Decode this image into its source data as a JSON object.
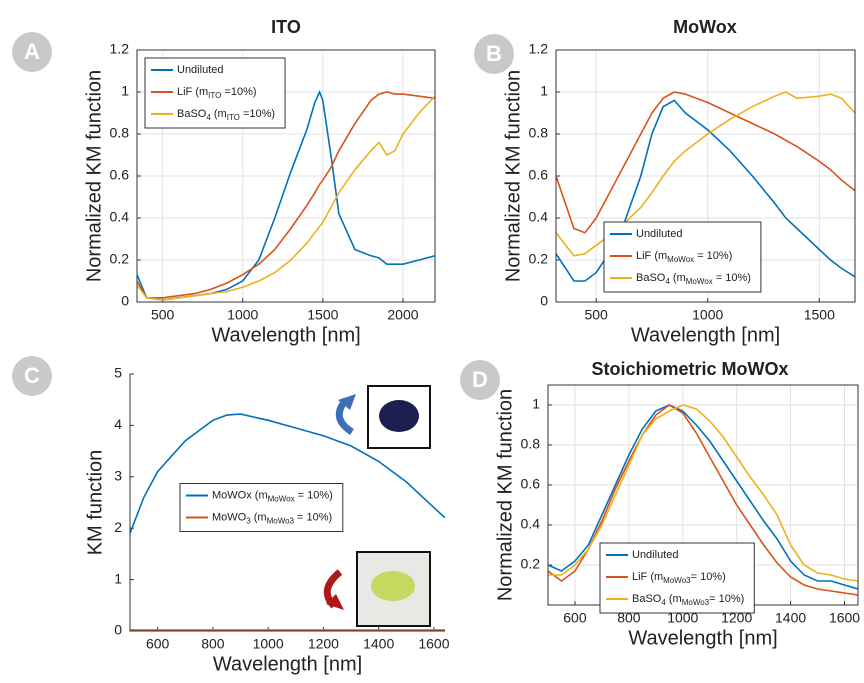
{
  "chart_data": [
    {
      "type": "line",
      "panel_label": "A",
      "title": "ITO",
      "xlabel": "Wavelength [nm]",
      "ylabel": "Normalized KM function",
      "xlim": [
        340,
        2200
      ],
      "ylim": [
        0,
        1.2
      ],
      "xticks": [
        500,
        1000,
        1500,
        2000
      ],
      "yticks": [
        0,
        0.2,
        0.4,
        0.6,
        0.8,
        1,
        1.2
      ],
      "grid": true,
      "box": true,
      "legend": "upper left",
      "x": [
        340,
        400,
        500,
        600,
        700,
        800,
        900,
        1000,
        1100,
        1200,
        1300,
        1400,
        1450,
        1480,
        1500,
        1550,
        1600,
        1700,
        1800,
        1850,
        1900,
        1950,
        2000,
        2100,
        2200
      ],
      "series": [
        {
          "name": [
            "Undiluted"
          ],
          "color": "#0072bd",
          "values": [
            0.13,
            0.02,
            0.01,
            0.02,
            0.03,
            0.04,
            0.06,
            0.1,
            0.2,
            0.4,
            0.62,
            0.82,
            0.95,
            1.0,
            0.96,
            0.7,
            0.42,
            0.25,
            0.22,
            0.21,
            0.18,
            0.18,
            0.18,
            0.2,
            0.22
          ]
        },
        {
          "name": [
            "LiF (m",
            "ITO",
            " =10%)"
          ],
          "color": "#d95319",
          "values": [
            0.1,
            0.02,
            0.02,
            0.03,
            0.04,
            0.06,
            0.09,
            0.13,
            0.18,
            0.25,
            0.35,
            0.46,
            0.52,
            0.56,
            0.58,
            0.64,
            0.72,
            0.85,
            0.96,
            0.99,
            1.0,
            0.99,
            0.99,
            0.98,
            0.97
          ]
        },
        {
          "name": [
            "BaSO",
            "4",
            " (m",
            "ITO",
            " =10%)"
          ],
          "color": "#edb120",
          "values": [
            0.08,
            0.02,
            0.01,
            0.02,
            0.03,
            0.04,
            0.05,
            0.07,
            0.1,
            0.14,
            0.2,
            0.28,
            0.33,
            0.36,
            0.38,
            0.45,
            0.52,
            0.63,
            0.72,
            0.76,
            0.7,
            0.72,
            0.8,
            0.9,
            0.98
          ]
        }
      ]
    },
    {
      "type": "line",
      "panel_label": "B",
      "title": "MoWox",
      "xlabel": "Wavelength [nm]",
      "ylabel": "Normalized KM function",
      "xlim": [
        320,
        1660
      ],
      "ylim": [
        0,
        1.2
      ],
      "xticks": [
        500,
        1000,
        1500
      ],
      "yticks": [
        0,
        0.2,
        0.4,
        0.6,
        0.8,
        1,
        1.2
      ],
      "grid": true,
      "box": true,
      "legend": "lower center",
      "x": [
        320,
        400,
        450,
        500,
        600,
        700,
        750,
        800,
        850,
        900,
        1000,
        1100,
        1200,
        1300,
        1350,
        1400,
        1500,
        1550,
        1600,
        1660
      ],
      "series": [
        {
          "name": [
            "Undiluted"
          ],
          "color": "#0072bd",
          "values": [
            0.23,
            0.1,
            0.1,
            0.14,
            0.3,
            0.6,
            0.8,
            0.93,
            0.96,
            0.9,
            0.82,
            0.72,
            0.6,
            0.47,
            0.4,
            0.35,
            0.25,
            0.2,
            0.16,
            0.12
          ]
        },
        {
          "name": [
            "LiF (m",
            "MoWox",
            " = 10%)"
          ],
          "color": "#d95319",
          "values": [
            0.6,
            0.35,
            0.33,
            0.4,
            0.6,
            0.8,
            0.9,
            0.97,
            1.0,
            0.99,
            0.95,
            0.9,
            0.85,
            0.8,
            0.77,
            0.74,
            0.67,
            0.63,
            0.58,
            0.53
          ]
        },
        {
          "name": [
            "BaSO",
            "4",
            " (m",
            "MoWox",
            " = 10%)"
          ],
          "color": "#edb120",
          "values": [
            0.33,
            0.22,
            0.23,
            0.27,
            0.35,
            0.45,
            0.52,
            0.6,
            0.67,
            0.72,
            0.8,
            0.87,
            0.93,
            0.98,
            1.0,
            0.97,
            0.98,
            0.99,
            0.97,
            0.9
          ]
        }
      ]
    },
    {
      "type": "line",
      "panel_label": "C",
      "xlabel": "Wavelength [nm]",
      "ylabel": "KM function",
      "xlim": [
        500,
        1640
      ],
      "ylim": [
        0,
        5
      ],
      "xticks": [
        600,
        800,
        1000,
        1200,
        1400,
        1600
      ],
      "yticks": [
        0,
        1,
        2,
        3,
        4,
        5
      ],
      "grid": false,
      "box": false,
      "legend": "center",
      "x": [
        500,
        550,
        600,
        650,
        700,
        750,
        800,
        850,
        900,
        1000,
        1100,
        1200,
        1300,
        1400,
        1500,
        1600,
        1640
      ],
      "series": [
        {
          "name": [
            "MoWOx (m",
            "MoWox",
            " = 10%)"
          ],
          "color": "#0072bd",
          "values": [
            1.9,
            2.6,
            3.1,
            3.4,
            3.7,
            3.9,
            4.1,
            4.2,
            4.22,
            4.1,
            3.95,
            3.8,
            3.6,
            3.3,
            2.9,
            2.4,
            2.2
          ]
        },
        {
          "name": [
            "MoWO",
            "3",
            " (m",
            "MoWo3",
            " = 10%)"
          ],
          "color": "#d95319",
          "values": [
            0.02,
            0.02,
            0.02,
            0.02,
            0.02,
            0.02,
            0.02,
            0.02,
            0.02,
            0.02,
            0.02,
            0.02,
            0.02,
            0.02,
            0.02,
            0.02,
            0.02
          ]
        }
      ]
    },
    {
      "type": "line",
      "panel_label": "D",
      "title": "Stoichiometric MoWOx",
      "xlabel": "Wavelength [nm]",
      "ylabel": "Normalized KM function",
      "xlim": [
        500,
        1650
      ],
      "ylim": [
        0,
        1.1
      ],
      "xticks": [
        600,
        800,
        1000,
        1200,
        1400,
        1600
      ],
      "yticks": [
        0.2,
        0.4,
        0.6,
        0.8,
        1
      ],
      "grid": true,
      "box": true,
      "legend": "lower left",
      "x": [
        500,
        550,
        600,
        650,
        700,
        750,
        800,
        850,
        900,
        950,
        1000,
        1050,
        1100,
        1150,
        1200,
        1250,
        1300,
        1350,
        1400,
        1450,
        1500,
        1550,
        1600,
        1650
      ],
      "series": [
        {
          "name": [
            "Undiluted"
          ],
          "color": "#0072bd",
          "values": [
            0.2,
            0.17,
            0.22,
            0.3,
            0.45,
            0.6,
            0.75,
            0.88,
            0.97,
            1.0,
            0.97,
            0.9,
            0.82,
            0.72,
            0.62,
            0.52,
            0.42,
            0.33,
            0.22,
            0.15,
            0.12,
            0.12,
            0.1,
            0.08
          ]
        },
        {
          "name": [
            "LiF (m",
            "MoWo3",
            "= 10%)"
          ],
          "color": "#d95319",
          "values": [
            0.17,
            0.12,
            0.17,
            0.28,
            0.42,
            0.58,
            0.72,
            0.85,
            0.95,
            1.0,
            0.96,
            0.86,
            0.74,
            0.62,
            0.5,
            0.4,
            0.3,
            0.21,
            0.14,
            0.1,
            0.08,
            0.07,
            0.06,
            0.05
          ]
        },
        {
          "name": [
            "BaSO",
            "4",
            " (m",
            "MoWo3",
            "= 10%)"
          ],
          "color": "#edb120",
          "values": [
            0.15,
            0.15,
            0.2,
            0.28,
            0.4,
            0.55,
            0.7,
            0.85,
            0.93,
            0.97,
            1.0,
            0.98,
            0.92,
            0.84,
            0.74,
            0.64,
            0.55,
            0.45,
            0.3,
            0.2,
            0.16,
            0.15,
            0.13,
            0.12
          ]
        }
      ]
    }
  ]
}
